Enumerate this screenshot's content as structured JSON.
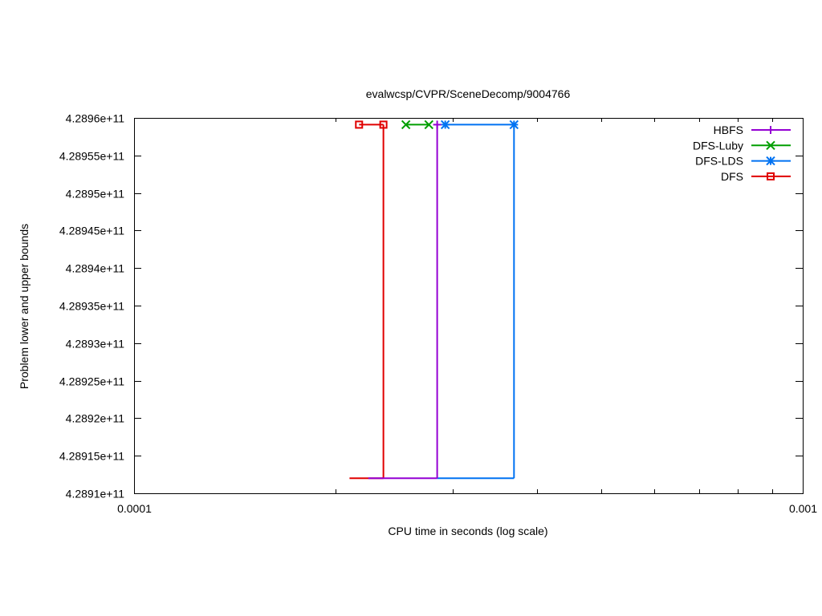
{
  "chart_data": {
    "type": "line",
    "title": "evalwcsp/CVPR/SceneDecomp/9004766",
    "xlabel": "CPU time in seconds (log scale)",
    "ylabel": "Problem lower and upper bounds",
    "x_scale": "log",
    "xlim": [
      0.0001,
      0.001
    ],
    "ylim": [
      428910000000,
      428960000000
    ],
    "x_ticks": [
      {
        "value": 0.0001,
        "label": "0.0001"
      },
      {
        "value": 0.001,
        "label": "0.001"
      }
    ],
    "y_ticks": [
      {
        "value": 428910000000,
        "label": "4.2891e+11"
      },
      {
        "value": 428915000000,
        "label": "4.28915e+11"
      },
      {
        "value": 428920000000,
        "label": "4.2892e+11"
      },
      {
        "value": 428925000000,
        "label": "4.28925e+11"
      },
      {
        "value": 428930000000,
        "label": "4.2893e+11"
      },
      {
        "value": 428935000000,
        "label": "4.28935e+11"
      },
      {
        "value": 428940000000,
        "label": "4.2894e+11"
      },
      {
        "value": 428945000000,
        "label": "4.28945e+11"
      },
      {
        "value": 428950000000,
        "label": "4.2895e+11"
      },
      {
        "value": 428955000000,
        "label": "4.28955e+11"
      },
      {
        "value": 428960000000,
        "label": "4.2896e+11"
      }
    ],
    "grid": false,
    "legend_position": "top-right",
    "series": [
      {
        "name": "HBFS",
        "color": "#9400d3",
        "marker": "plus",
        "lower": [
          [
            0.000224,
            428912000000
          ],
          [
            0.000284,
            428912000000
          ]
        ],
        "upper": [
          [
            0.000284,
            428959100000
          ]
        ],
        "step_x": 0.000284
      },
      {
        "name": "DFS-Luby",
        "color": "#009e00",
        "marker": "cross",
        "lower": [],
        "upper": [
          [
            0.000255,
            428959100000
          ],
          [
            0.000276,
            428959100000
          ]
        ],
        "step_x": null
      },
      {
        "name": "DFS-LDS",
        "color": "#0072f2",
        "marker": "star",
        "lower": [
          [
            0.000284,
            428912000000
          ],
          [
            0.00037,
            428912000000
          ]
        ],
        "upper": [
          [
            0.000292,
            428959100000
          ],
          [
            0.00037,
            428959100000
          ]
        ],
        "step_x": 0.00037
      },
      {
        "name": "DFS",
        "color": "#e00000",
        "marker": "square",
        "lower": [
          [
            0.00021,
            428912000000
          ],
          [
            0.000236,
            428912000000
          ]
        ],
        "upper": [
          [
            0.000217,
            428959100000
          ],
          [
            0.000236,
            428959100000
          ]
        ],
        "step_x": 0.000236
      }
    ]
  }
}
